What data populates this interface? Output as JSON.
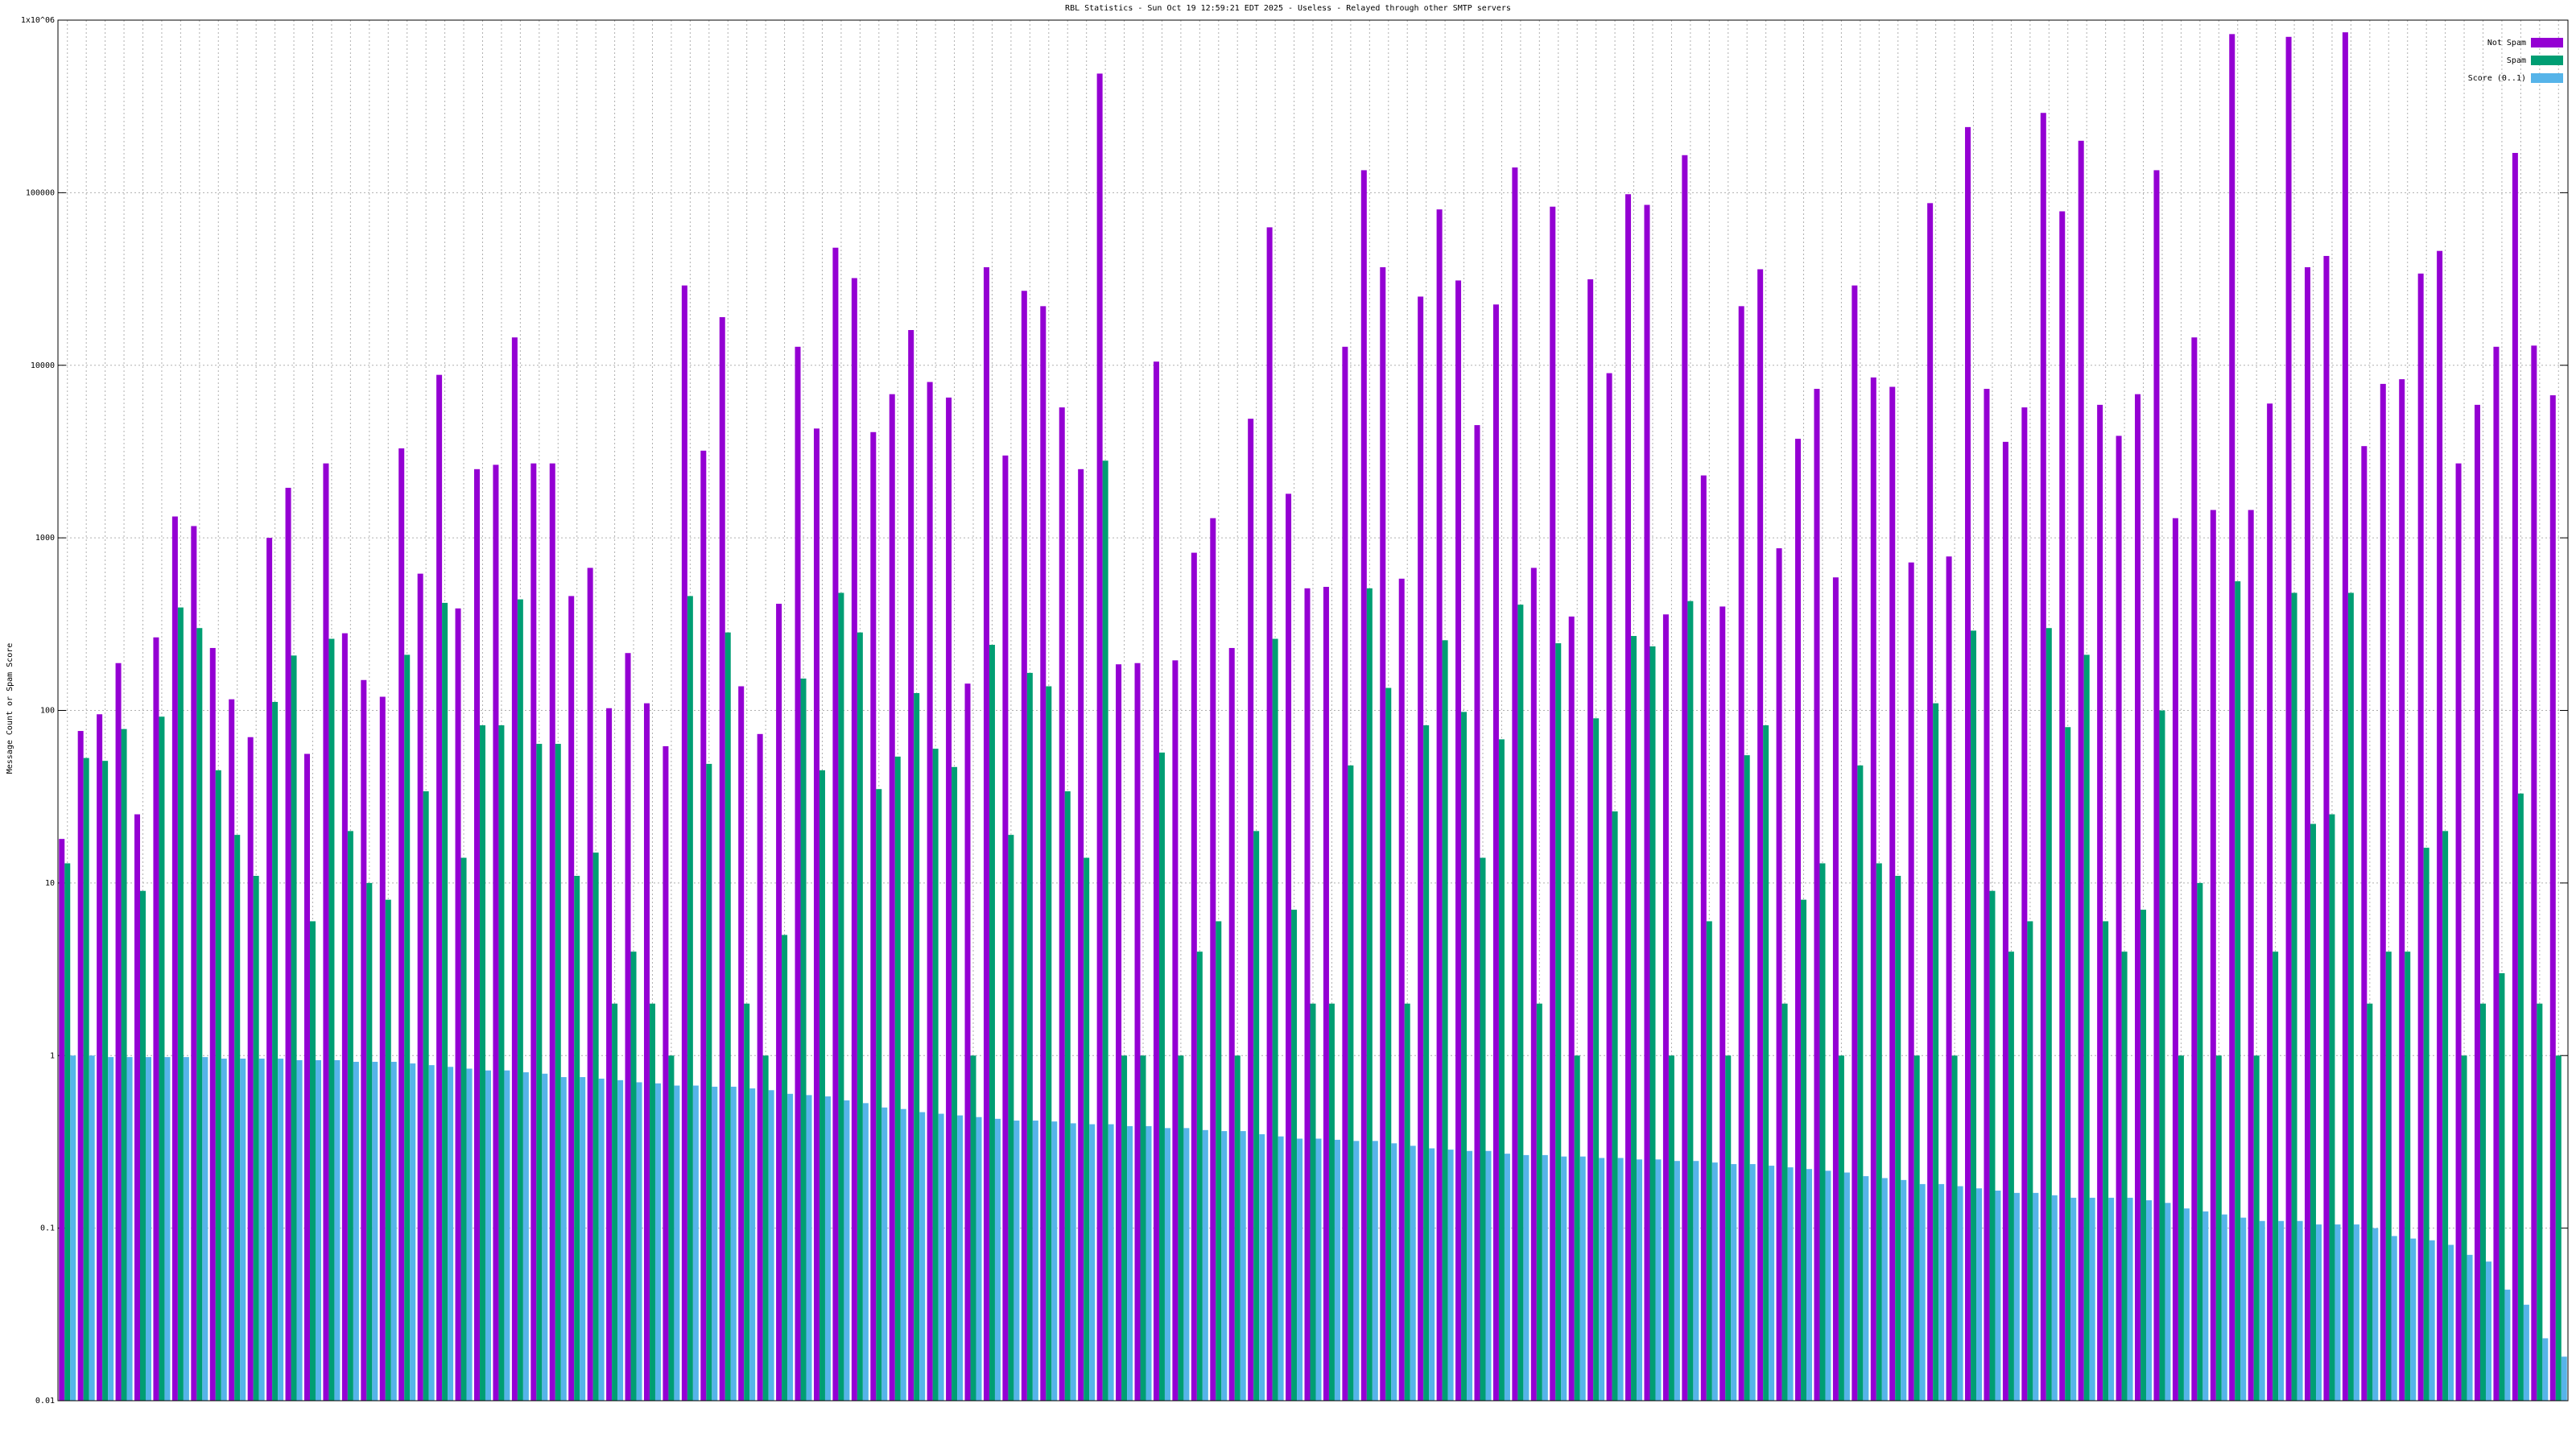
{
  "chart_data": {
    "type": "bar",
    "title": "RBL Statistics - Sun Oct 19 12:59:21 EDT 2025 - Useless - Relayed through other SMTP servers",
    "y_label": "Message Count or Spam Score",
    "ylog": true,
    "grid": true,
    "legend": "top-right",
    "ylim": [
      0.01,
      1000000
    ],
    "yticks": [
      0.01,
      0.1,
      1,
      10,
      100,
      1000,
      10000,
      100000,
      {
        "value": 1000000,
        "label": "1x10^06"
      }
    ],
    "categories": [
      null,
      null,
      null,
      null,
      null,
      null,
      null,
      null,
      null,
      null,
      null,
      null,
      null,
      null,
      null,
      null,
      null,
      null,
      null,
      null,
      null,
      null,
      null,
      null,
      null,
      null,
      null,
      null,
      null,
      null,
      null,
      null,
      null,
      null,
      null,
      null,
      null,
      null,
      null,
      null,
      null,
      null,
      null,
      null,
      null,
      null,
      null,
      null,
      null,
      null,
      null,
      null,
      null,
      null,
      null,
      null,
      null,
      null,
      null,
      null,
      null,
      null,
      null,
      null,
      null,
      null,
      null,
      null,
      null,
      null,
      null,
      null,
      null,
      null,
      null,
      null,
      null,
      null,
      null,
      null,
      null,
      null,
      null,
      null,
      null,
      null,
      null,
      null,
      null,
      null,
      null,
      null,
      null,
      null,
      null,
      null,
      null,
      null,
      null,
      null,
      null,
      null,
      null,
      null,
      null,
      null,
      null,
      null,
      null,
      null,
      null,
      null,
      null,
      null,
      null,
      null,
      null,
      null,
      null,
      null,
      null,
      null,
      null,
      null,
      null,
      null,
      null,
      null,
      null,
      null,
      null,
      null,
      null
    ],
    "series": [
      {
        "name": "Not Spam",
        "color": "#9400d3",
        "values": [
          18,
          76,
          95,
          188,
          25,
          265,
          1330,
          1170,
          230,
          116,
          70,
          1000,
          1950,
          56,
          2700,
          280,
          150,
          120,
          3300,
          620,
          8800,
          390,
          2500,
          2650,
          14500,
          2700,
          2700,
          460,
          670,
          103,
          215,
          110,
          62,
          29000,
          3200,
          19000,
          138,
          73,
          415,
          12800,
          4300,
          48000,
          32000,
          4100,
          6800,
          16000,
          8000,
          6500,
          143,
          37000,
          3000,
          27000,
          22000,
          5700,
          2500,
          490000,
          185,
          188,
          10500,
          195,
          820,
          1300,
          230,
          4900,
          63000,
          1800,
          510,
          520,
          12800,
          135000,
          37000,
          580,
          25000,
          80000,
          31000,
          4500,
          22500,
          140000,
          670,
          83000,
          350,
          31500,
          9000,
          98000,
          85000,
          360,
          165000,
          2300,
          400,
          22000,
          36000,
          870,
          3750,
          7300,
          590,
          29000,
          8500,
          7500,
          720,
          87000,
          780,
          240000,
          7300,
          3600,
          5700,
          290000,
          78000,
          200000,
          5900,
          3900,
          6800,
          135000,
          1300,
          14500,
          1450,
          830000,
          1450,
          6000,
          800000,
          37000,
          43000,
          850000,
          3400,
          7800,
          8300,
          34000,
          46000,
          2700,
          5900,
          12800,
          170000,
          13000,
          6700
        ]
      },
      {
        "name": "Spam",
        "color": "#009e73",
        "values": [
          13,
          53,
          51,
          78,
          9,
          92,
          395,
          300,
          45,
          19,
          11,
          112,
          208,
          6,
          260,
          20,
          10,
          8,
          210,
          34,
          420,
          14,
          82,
          82,
          440,
          64,
          64,
          11,
          15,
          2,
          4,
          2,
          1,
          460,
          49,
          283,
          2,
          1,
          5,
          153,
          45,
          480,
          283,
          35,
          54,
          126,
          60,
          47,
          1,
          240,
          19,
          165,
          138,
          34,
          14,
          2800,
          1,
          1,
          57,
          1,
          4,
          6,
          1,
          20,
          260,
          7,
          2,
          2,
          48,
          510,
          135,
          2,
          82,
          255,
          98,
          14,
          68,
          410,
          2,
          245,
          1,
          90,
          26,
          270,
          235,
          1,
          430,
          6,
          1,
          55,
          82,
          2,
          8,
          13,
          1,
          48,
          13,
          11,
          1,
          110,
          1,
          290,
          9,
          4,
          6,
          300,
          80,
          210,
          6,
          4,
          7,
          100,
          1,
          10,
          1,
          560,
          1,
          4,
          480,
          22,
          25,
          480,
          2,
          4,
          4,
          16,
          20,
          1,
          2,
          3,
          33,
          2,
          1
        ]
      },
      {
        "name": "Score (0..1)",
        "color": "#56b4e9",
        "values": [
          1,
          1,
          0.98,
          0.98,
          0.98,
          0.98,
          0.98,
          0.98,
          0.96,
          0.96,
          0.96,
          0.96,
          0.94,
          0.94,
          0.94,
          0.92,
          0.92,
          0.92,
          0.9,
          0.88,
          0.86,
          0.84,
          0.82,
          0.82,
          0.8,
          0.785,
          0.75,
          0.75,
          0.735,
          0.72,
          0.7,
          0.69,
          0.67,
          0.67,
          0.66,
          0.66,
          0.645,
          0.63,
          0.6,
          0.59,
          0.58,
          0.55,
          0.53,
          0.5,
          0.49,
          0.47,
          0.46,
          0.45,
          0.44,
          0.43,
          0.42,
          0.42,
          0.415,
          0.405,
          0.4,
          0.4,
          0.39,
          0.39,
          0.38,
          0.38,
          0.37,
          0.365,
          0.365,
          0.35,
          0.34,
          0.33,
          0.33,
          0.325,
          0.32,
          0.32,
          0.31,
          0.3,
          0.29,
          0.285,
          0.28,
          0.28,
          0.27,
          0.265,
          0.265,
          0.26,
          0.26,
          0.255,
          0.255,
          0.25,
          0.25,
          0.245,
          0.245,
          0.24,
          0.235,
          0.235,
          0.23,
          0.225,
          0.22,
          0.215,
          0.21,
          0.2,
          0.195,
          0.19,
          0.18,
          0.18,
          0.175,
          0.17,
          0.165,
          0.16,
          0.16,
          0.155,
          0.15,
          0.15,
          0.15,
          0.15,
          0.145,
          0.14,
          0.13,
          0.125,
          0.12,
          0.115,
          0.11,
          0.11,
          0.11,
          0.105,
          0.105,
          0.105,
          0.1,
          0.09,
          0.087,
          0.085,
          0.08,
          0.07,
          0.064,
          0.044,
          0.036,
          0.023,
          0.018
        ]
      }
    ]
  }
}
